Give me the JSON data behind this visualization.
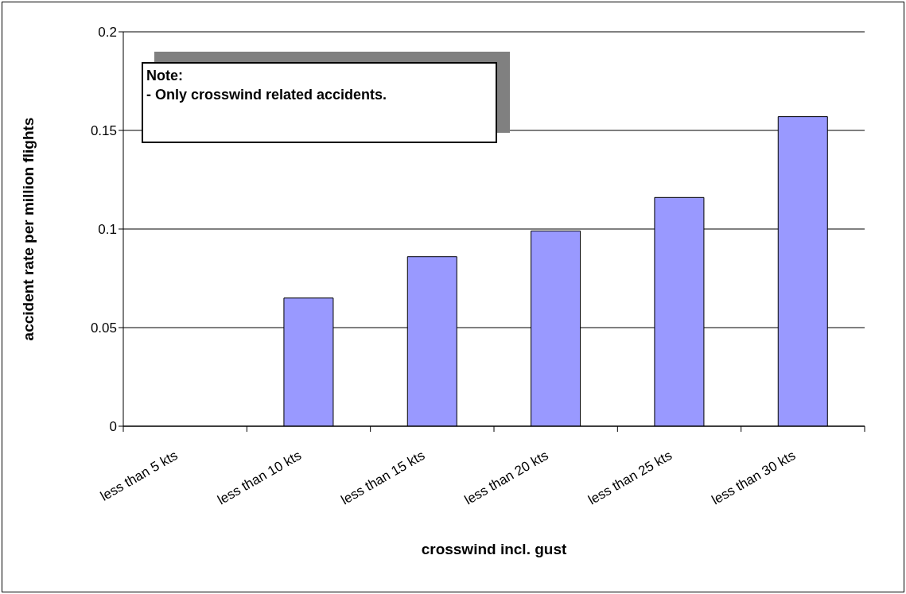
{
  "chart_data": {
    "type": "bar",
    "xlabel": "crosswind incl. gust",
    "ylabel": "accident rate per million flights",
    "annotations": [
      "Note:\n- Only crosswind related accidents."
    ],
    "categories": [
      "less than 5 kts",
      "less than 10 kts",
      "less than 15 kts",
      "less than 20 kts",
      "less than 25 kts",
      "less than 30 kts"
    ],
    "values": [
      0,
      0.065,
      0.086,
      0.099,
      0.116,
      0.157
    ],
    "color": "#9999ff",
    "ylim": [
      0,
      0.2
    ],
    "yticks": [
      0,
      0.05,
      0.1,
      0.15,
      0.2
    ],
    "grid": "y"
  }
}
